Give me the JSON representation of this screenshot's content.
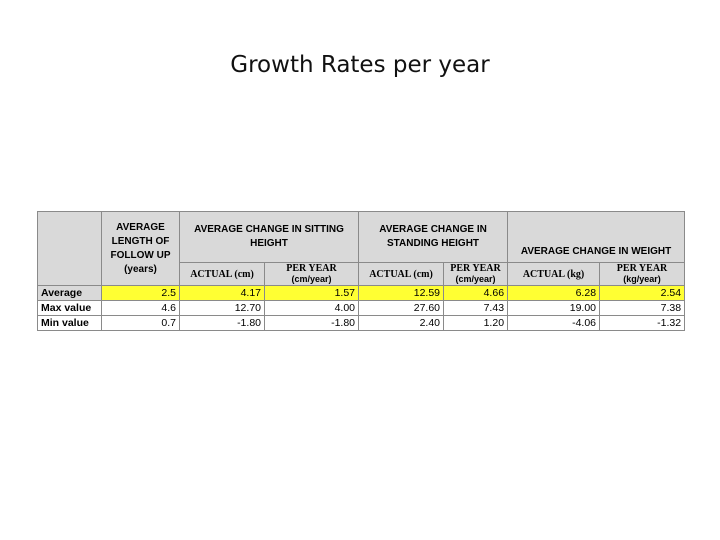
{
  "title": "Growth Rates per year",
  "table": {
    "header": {
      "follow_up": [
        "AVERAGE",
        "LENGTH OF",
        "FOLLOW UP",
        "(years)"
      ],
      "sitting": [
        "AVERAGE CHANGE IN SITTING",
        "HEIGHT"
      ],
      "standing": [
        "AVERAGE CHANGE IN",
        "STANDING HEIGHT"
      ],
      "weight": "AVERAGE CHANGE IN WEIGHT",
      "actual_cm": "ACTUAL (cm)",
      "per_year": "PER YEAR",
      "cm_year": "(cm/year)",
      "actual_kg": "ACTUAL (kg)",
      "kg_year": "(kg/year)"
    },
    "rows": [
      {
        "label": "Average",
        "values": [
          "2.5",
          "4.17",
          "1.57",
          "12.59",
          "4.66",
          "6.28",
          "2.54"
        ],
        "highlight": "#ffff33"
      },
      {
        "label": "Max value",
        "values": [
          "4.6",
          "12.70",
          "4.00",
          "27.60",
          "7.43",
          "19.00",
          "7.38"
        ]
      },
      {
        "label": "Min value",
        "values": [
          "0.7",
          "-1.80",
          "-1.80",
          "2.40",
          "1.20",
          "-4.06",
          "-1.32"
        ]
      }
    ]
  }
}
